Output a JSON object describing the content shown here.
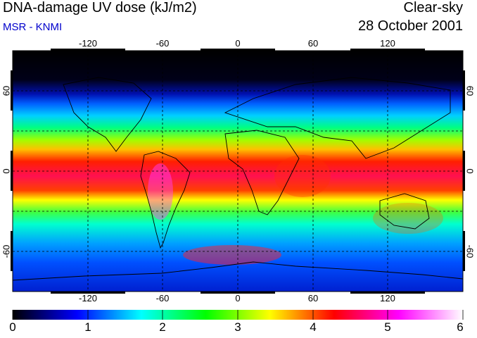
{
  "header": {
    "title": "DNA-damage UV dose (kJ/m2)",
    "source": "MSR - KNMI",
    "condition": "Clear-sky",
    "date": "28 October 2001"
  },
  "map": {
    "projection": "equirectangular",
    "lon_range": [
      -180,
      180
    ],
    "lat_range": [
      -90,
      90
    ],
    "gridlines": "dashed, every 30 degrees",
    "lon_labels": [
      "-120",
      "-60",
      "0",
      "60",
      "120"
    ],
    "lat_labels_left": [
      "60",
      "0",
      "-60"
    ],
    "lat_labels_right": [
      "60",
      "0",
      "-60"
    ],
    "field": "UV dose maximum in tropics (~4-5), minimum (dark) in northern polar night"
  },
  "colorbar": {
    "min": 0,
    "max": 6,
    "labels": [
      "0",
      "1",
      "2",
      "3",
      "4",
      "5",
      "6"
    ],
    "colors": [
      "#000000",
      "#0000ff",
      "#00ffff",
      "#00ff00",
      "#ffff00",
      "#ff0000",
      "#ff00ff",
      "#ffffff"
    ]
  }
}
